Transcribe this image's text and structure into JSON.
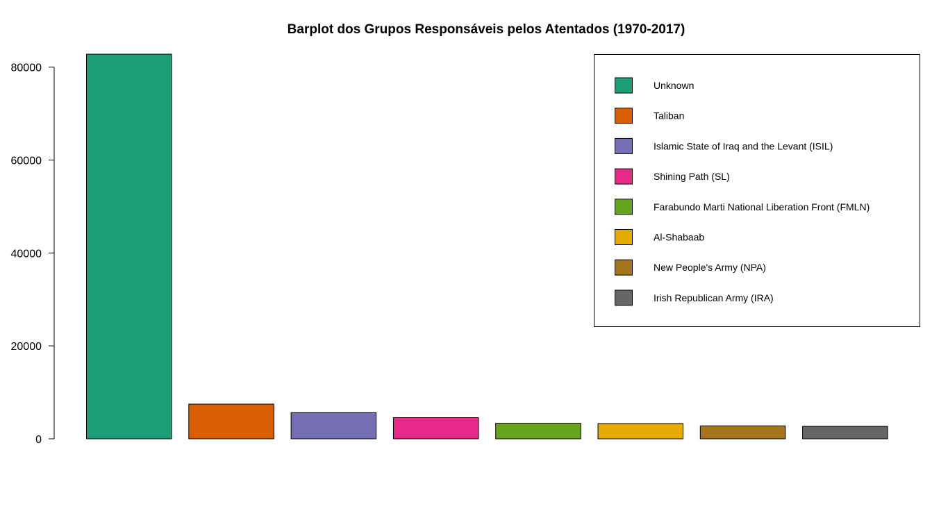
{
  "chart_data": {
    "type": "bar",
    "title": "Barplot dos Grupos Responsáveis pelos Atentados (1970-2017)",
    "xlabel": "",
    "ylabel": "",
    "categories": [
      "Unknown",
      "Taliban",
      "Islamic State of Iraq and the Levant (ISIL)",
      "Shining Path (SL)",
      "Farabundo Marti National Liberation Front (FMLN)",
      "Al-Shabaab",
      "New People's Army (NPA)",
      "Irish Republican Army (IRA)"
    ],
    "values": [
      82782,
      7478,
      5613,
      4555,
      3351,
      3288,
      2772,
      2671
    ],
    "colors": [
      "#1B9E77",
      "#D95F02",
      "#7570B3",
      "#E7298A",
      "#66A61E",
      "#E6AB02",
      "#A6761D",
      "#666666"
    ],
    "ylim": [
      0,
      82782
    ],
    "yticks": [
      0,
      20000,
      40000,
      60000,
      80000
    ],
    "ytick_labels": [
      "0",
      "20000",
      "40000",
      "60000",
      "80000"
    ],
    "grid": false,
    "legend": {
      "placement": "top-right",
      "entries": [
        "Unknown",
        "Taliban",
        "Islamic State of Iraq and the Levant (ISIL)",
        "Shining Path (SL)",
        "Farabundo Marti National Liberation Front (FMLN)",
        "Al-Shabaab",
        "New People's Army (NPA)",
        "Irish Republican Army (IRA)"
      ]
    }
  }
}
